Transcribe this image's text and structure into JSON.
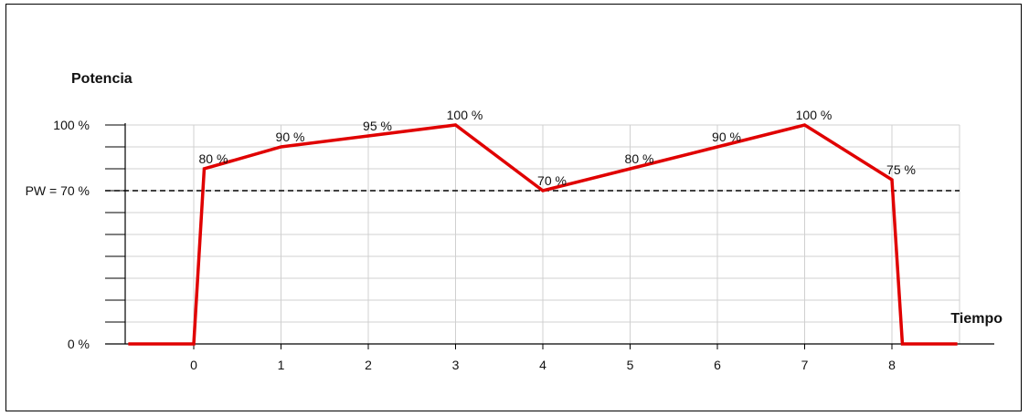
{
  "chart_data": {
    "type": "line",
    "title": "",
    "ylabel": "Potencia",
    "xlabel": "Tiempo",
    "x_ticks": [
      "0",
      "1",
      "2",
      "3",
      "4",
      "5",
      "6",
      "7",
      "8"
    ],
    "y_tick_labels": [
      {
        "value": 100,
        "label": "100 %"
      },
      {
        "value": 70,
        "label": "PW = 70 %"
      },
      {
        "value": 0,
        "label": "0 %"
      }
    ],
    "reference_line": {
      "value": 70,
      "style": "dashed",
      "color": "#000000"
    },
    "xlim": [
      -0.75,
      8.75
    ],
    "ylim": [
      0,
      100
    ],
    "grid": true,
    "series": [
      {
        "color": "#e00000",
        "x": [
          -0.75,
          0.0,
          0.12,
          1.0,
          2.0,
          3.0,
          4.0,
          5.0,
          6.0,
          7.0,
          8.0,
          8.12,
          8.75
        ],
        "y": [
          0,
          0,
          80,
          90,
          95,
          100,
          70,
          80,
          90,
          100,
          75,
          0,
          0
        ]
      }
    ],
    "data_labels": [
      {
        "x": 0.12,
        "y": 80,
        "text": "80 %"
      },
      {
        "x": 1.0,
        "y": 90,
        "text": "90 %"
      },
      {
        "x": 2.0,
        "y": 95,
        "text": "95 %"
      },
      {
        "x": 3.0,
        "y": 100,
        "text": "100 %"
      },
      {
        "x": 4.0,
        "y": 70,
        "text": "70 %"
      },
      {
        "x": 5.0,
        "y": 80,
        "text": "80 %"
      },
      {
        "x": 6.0,
        "y": 90,
        "text": "90 %"
      },
      {
        "x": 7.0,
        "y": 100,
        "text": "100 %"
      },
      {
        "x": 8.0,
        "y": 75,
        "text": "75 %"
      }
    ]
  }
}
